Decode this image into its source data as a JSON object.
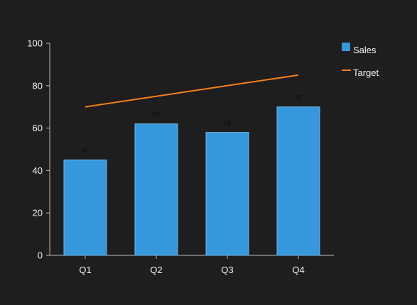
{
  "chart_data": {
    "type": "bar",
    "categories": [
      "Q1",
      "Q2",
      "Q3",
      "Q4"
    ],
    "series": [
      {
        "name": "Sales",
        "kind": "bar",
        "values": [
          45,
          62,
          58,
          70
        ],
        "color": "#3598dc"
      },
      {
        "name": "Target",
        "kind": "line",
        "values": [
          70,
          75,
          80,
          85
        ],
        "color": "#f57f17"
      }
    ],
    "data_labels": [
      "45",
      "62",
      "58",
      "70"
    ],
    "ylim": [
      0,
      100
    ],
    "yticks": [
      0,
      20,
      40,
      60,
      80,
      100
    ],
    "grid": false,
    "legend_placement": "top-right",
    "title": "",
    "xlabel": "",
    "ylabel": ""
  },
  "colors": {
    "background": "#1e1e1e",
    "axis": "#bbbbbb",
    "text": "#f2f2f2",
    "data_label": "#111111",
    "bar_edge": "#6fb6ea"
  }
}
